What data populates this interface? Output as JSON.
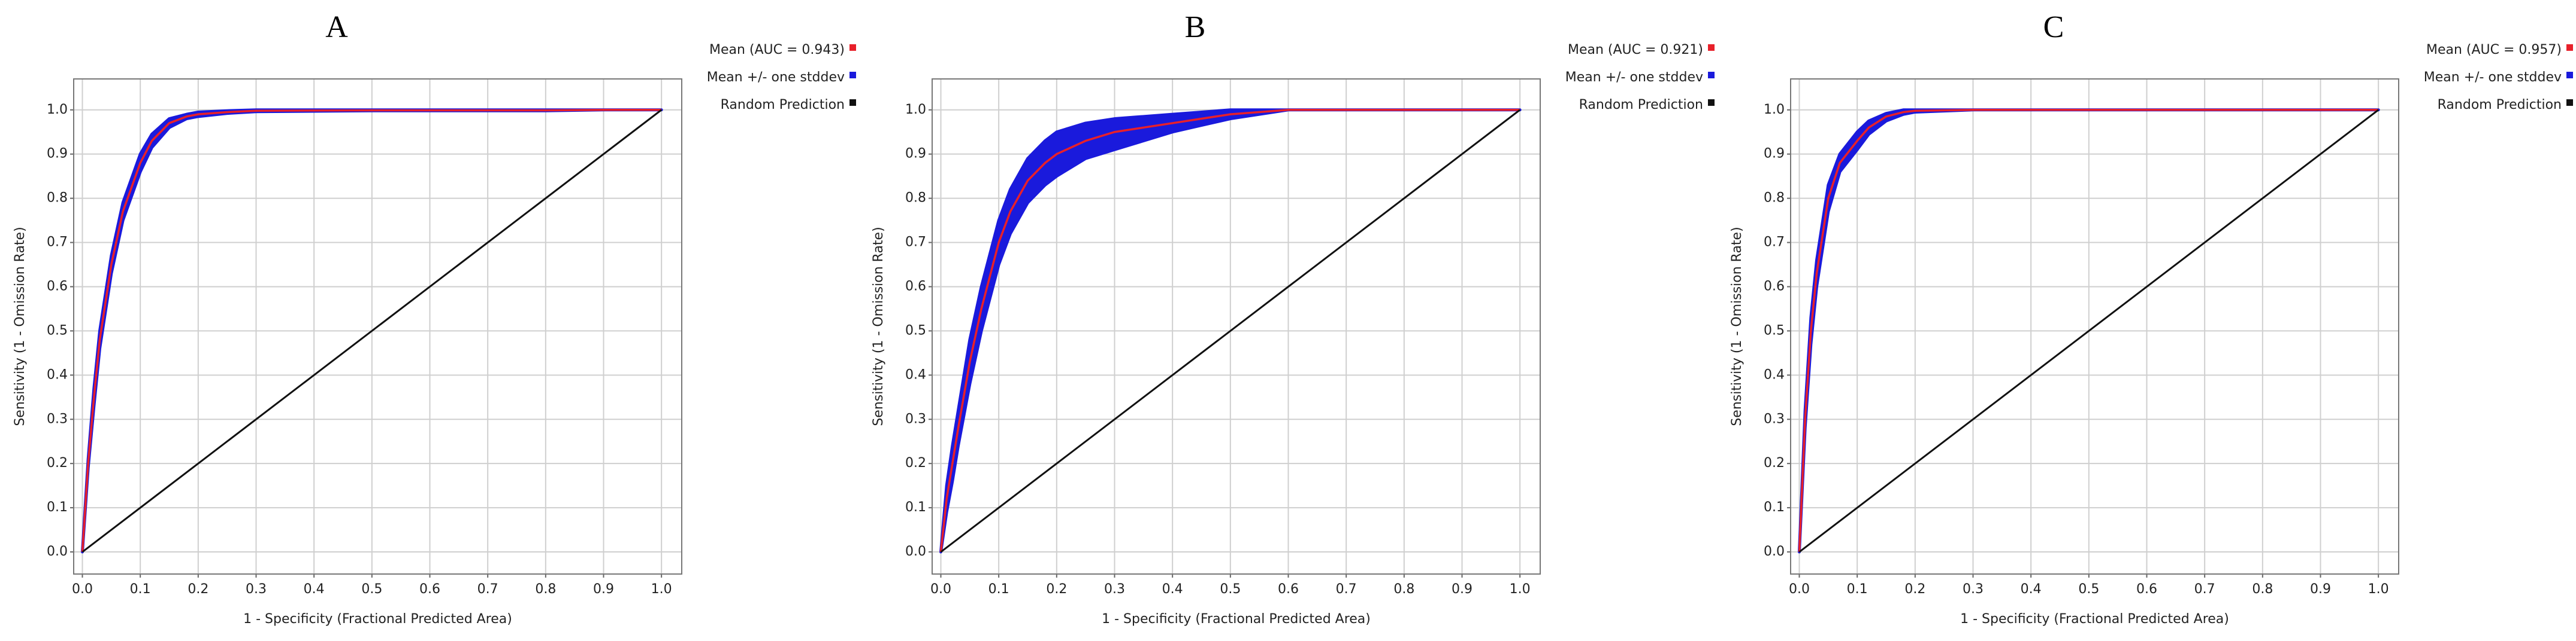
{
  "charts": [
    {
      "type": "line",
      "title": "A",
      "xlabel": "1 - Specificity (Fractional Predicted Area)",
      "ylabel": "Sensitivity (1 - Omission Rate)",
      "xlim": [
        -0.015,
        1.035
      ],
      "ylim": [
        -0.05,
        1.07
      ],
      "grid": true,
      "legend": "right",
      "xticks": [
        {
          "value": 0,
          "label": "0.0"
        },
        0.1,
        0.2,
        0.3,
        0.4,
        0.5,
        0.6,
        0.7,
        0.8,
        0.9,
        {
          "value": 1,
          "label": "1.0"
        }
      ],
      "yticks": [
        {
          "value": 0,
          "label": "0.0"
        },
        0.1,
        0.2,
        0.3,
        0.4,
        0.5,
        0.6,
        0.7,
        0.8,
        0.9,
        {
          "value": 1,
          "label": "1.0"
        }
      ],
      "x": [
        0,
        0.01,
        0.02,
        0.03,
        0.05,
        0.07,
        0.1,
        0.12,
        0.15,
        0.18,
        0.2,
        0.25,
        0.3,
        0.5,
        0.8,
        0.9,
        1
      ],
      "series": [
        {
          "name": "Mean (AUC = 0.943)",
          "color": "#e8202a",
          "values": [
            0,
            0.2,
            0.35,
            0.48,
            0.65,
            0.77,
            0.88,
            0.93,
            0.97,
            0.985,
            0.99,
            0.995,
            0.998,
            0.999,
            0.999,
            1,
            1
          ]
        },
        {
          "name": "Mean +/- one stddev",
          "color": "#1a1adc",
          "upper": [
            0,
            0.21,
            0.37,
            0.5,
            0.67,
            0.79,
            0.9,
            0.945,
            0.98,
            0.99,
            0.995,
            0.998,
            1,
            1,
            1,
            1,
            1
          ],
          "lower": [
            0,
            0.19,
            0.33,
            0.46,
            0.63,
            0.75,
            0.86,
            0.915,
            0.96,
            0.98,
            0.985,
            0.992,
            0.996,
            0.998,
            0.998,
            1,
            1
          ]
        },
        {
          "name": "Random Prediction",
          "color": "#111111",
          "x": [
            0,
            1
          ],
          "values": [
            0,
            1
          ]
        }
      ]
    },
    {
      "type": "line",
      "title": "B",
      "xlabel": "1 - Specificity (Fractional Predicted Area)",
      "ylabel": "Sensitivity (1 - Omission Rate)",
      "xlim": [
        -0.015,
        1.035
      ],
      "ylim": [
        -0.05,
        1.07
      ],
      "grid": true,
      "legend": "right",
      "xticks": [
        {
          "value": 0,
          "label": "0.0"
        },
        0.1,
        0.2,
        0.3,
        0.4,
        0.5,
        0.6,
        0.7,
        0.8,
        0.9,
        {
          "value": 1,
          "label": "1.0"
        }
      ],
      "yticks": [
        {
          "value": 0,
          "label": "0.0"
        },
        0.1,
        0.2,
        0.3,
        0.4,
        0.5,
        0.6,
        0.7,
        0.8,
        0.9,
        {
          "value": 1,
          "label": "1.0"
        }
      ],
      "x": [
        0,
        0.01,
        0.02,
        0.03,
        0.05,
        0.07,
        0.1,
        0.12,
        0.15,
        0.18,
        0.2,
        0.25,
        0.3,
        0.35,
        0.4,
        0.45,
        0.5,
        0.6,
        0.8,
        1
      ],
      "series": [
        {
          "name": "Mean (AUC = 0.921)",
          "color": "#e8202a",
          "values": [
            0,
            0.12,
            0.2,
            0.28,
            0.43,
            0.55,
            0.7,
            0.77,
            0.84,
            0.88,
            0.9,
            0.93,
            0.95,
            0.96,
            0.97,
            0.98,
            0.99,
            1,
            1,
            1
          ]
        },
        {
          "name": "Mean +/- one stddev",
          "color": "#1a1adc",
          "upper": [
            0,
            0.15,
            0.24,
            0.32,
            0.48,
            0.6,
            0.75,
            0.82,
            0.89,
            0.93,
            0.95,
            0.97,
            0.98,
            0.985,
            0.99,
            0.995,
            1,
            1,
            1,
            1
          ],
          "lower": [
            0,
            0.09,
            0.16,
            0.24,
            0.38,
            0.5,
            0.65,
            0.72,
            0.79,
            0.83,
            0.85,
            0.89,
            0.91,
            0.93,
            0.95,
            0.965,
            0.98,
            1,
            1,
            1
          ]
        },
        {
          "name": "Random Prediction",
          "color": "#111111",
          "x": [
            0,
            1
          ],
          "values": [
            0,
            1
          ]
        }
      ]
    },
    {
      "type": "line",
      "title": "C",
      "xlabel": "1 - Specificity (Fractional Predicted Area)",
      "ylabel": "Sensitivity (1 - Omission Rate)",
      "xlim": [
        -0.015,
        1.035
      ],
      "ylim": [
        -0.05,
        1.07
      ],
      "grid": true,
      "legend": "right",
      "xticks": [
        {
          "value": 0,
          "label": "0.0"
        },
        0.1,
        0.2,
        0.3,
        0.4,
        0.5,
        0.6,
        0.7,
        0.8,
        0.9,
        {
          "value": 1,
          "label": "1.0"
        }
      ],
      "yticks": [
        {
          "value": 0,
          "label": "0.0"
        },
        0.1,
        0.2,
        0.3,
        0.4,
        0.5,
        0.6,
        0.7,
        0.8,
        0.9,
        {
          "value": 1,
          "label": "1.0"
        }
      ],
      "x": [
        0,
        0.01,
        0.02,
        0.03,
        0.05,
        0.07,
        0.1,
        0.12,
        0.15,
        0.18,
        0.2,
        0.3,
        0.5,
        1
      ],
      "series": [
        {
          "name": "Mean (AUC = 0.957)",
          "color": "#e8202a",
          "values": [
            0,
            0.3,
            0.5,
            0.63,
            0.8,
            0.88,
            0.93,
            0.96,
            0.985,
            0.995,
            0.998,
            1,
            1,
            1
          ]
        },
        {
          "name": "Mean +/- one stddev",
          "color": "#1a1adc",
          "upper": [
            0,
            0.32,
            0.53,
            0.66,
            0.83,
            0.9,
            0.95,
            0.975,
            0.992,
            1,
            1,
            1,
            1,
            1
          ],
          "lower": [
            0,
            0.28,
            0.47,
            0.6,
            0.77,
            0.86,
            0.91,
            0.945,
            0.975,
            0.99,
            0.995,
            1,
            1,
            1
          ]
        },
        {
          "name": "Random Prediction",
          "color": "#111111",
          "x": [
            0,
            1
          ],
          "values": [
            0,
            1
          ]
        }
      ]
    }
  ]
}
